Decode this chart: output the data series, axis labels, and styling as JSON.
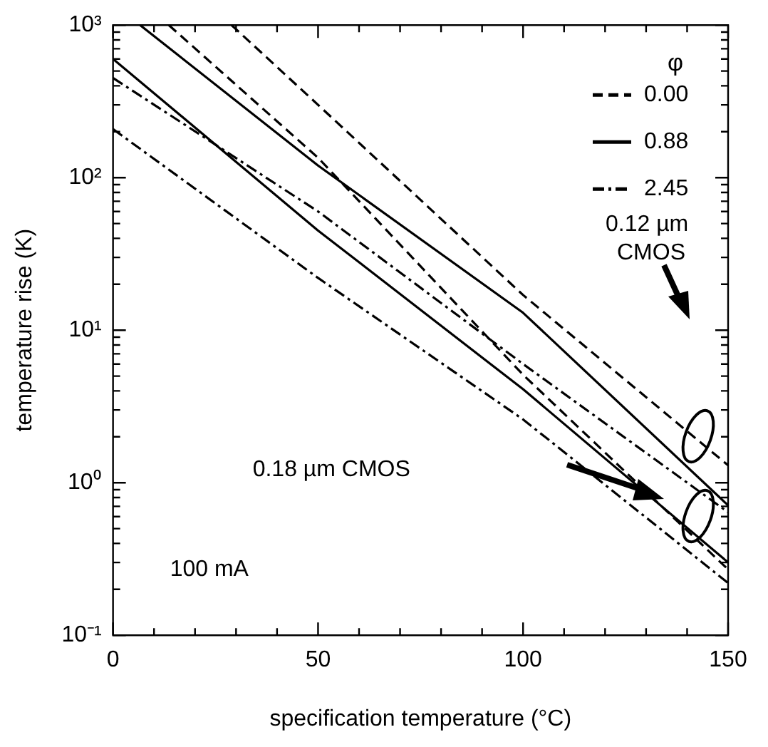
{
  "chart_data": {
    "type": "line",
    "xlabel": "specification temperature (°C)",
    "ylabel": "temperature rise (K)",
    "legend_title": "φ",
    "xlim": [
      0,
      150
    ],
    "ylim": [
      0.1,
      1000
    ],
    "log": "y",
    "xticks": [
      0,
      {
        "value": 10,
        "label": null
      },
      {
        "value": 20,
        "label": null
      },
      {
        "value": 30,
        "label": null
      },
      {
        "value": 40,
        "label": null
      },
      50,
      {
        "value": 60,
        "label": null
      },
      {
        "value": 70,
        "label": null
      },
      {
        "value": 80,
        "label": null
      },
      {
        "value": 90,
        "label": null
      },
      100,
      {
        "value": 110,
        "label": null
      },
      {
        "value": 120,
        "label": null
      },
      {
        "value": 130,
        "label": null
      },
      {
        "value": 140,
        "label": null
      },
      150
    ],
    "yticks": [
      {
        "value": 0.1,
        "label": "10⁻¹"
      },
      {
        "value": 0.2,
        "label": null
      },
      {
        "value": 0.3,
        "label": null
      },
      {
        "value": 0.4,
        "label": null
      },
      {
        "value": 0.5,
        "label": null
      },
      {
        "value": 0.6,
        "label": null
      },
      {
        "value": 0.7,
        "label": null
      },
      {
        "value": 0.8,
        "label": null
      },
      {
        "value": 0.9,
        "label": null
      },
      {
        "value": 1,
        "label": "10⁰"
      },
      {
        "value": 2,
        "label": null
      },
      {
        "value": 3,
        "label": null
      },
      {
        "value": 4,
        "label": null
      },
      {
        "value": 5,
        "label": null
      },
      {
        "value": 6,
        "label": null
      },
      {
        "value": 7,
        "label": null
      },
      {
        "value": 8,
        "label": null
      },
      {
        "value": 9,
        "label": null
      },
      {
        "value": 10,
        "label": "10¹"
      },
      {
        "value": 20,
        "label": null
      },
      {
        "value": 30,
        "label": null
      },
      {
        "value": 40,
        "label": null
      },
      {
        "value": 50,
        "label": null
      },
      {
        "value": 60,
        "label": null
      },
      {
        "value": 70,
        "label": null
      },
      {
        "value": 80,
        "label": null
      },
      {
        "value": 90,
        "label": null
      },
      {
        "value": 100,
        "label": "10²"
      },
      {
        "value": 200,
        "label": null
      },
      {
        "value": 300,
        "label": null
      },
      {
        "value": 400,
        "label": null
      },
      {
        "value": 500,
        "label": null
      },
      {
        "value": 600,
        "label": null
      },
      {
        "value": 700,
        "label": null
      },
      {
        "value": 800,
        "label": null
      },
      {
        "value": 900,
        "label": null
      },
      {
        "value": 1000,
        "label": "10³"
      }
    ],
    "legend": "top right",
    "grid": false,
    "marker": "none",
    "annotations": [
      "0.12 µm CMOS",
      "0.18 µm CMOS",
      "100 mA"
    ],
    "series": [
      {
        "name": "0.00",
        "color": "#000000",
        "line_style": "dashed",
        "x": [
          28.9,
          50,
          100,
          150
        ],
        "values": [
          1000,
          300,
          17,
          1.3
        ]
      },
      {
        "name": "0.88",
        "color": "#000000",
        "line_style": "solid",
        "x": [
          6.6,
          50,
          100,
          150
        ],
        "values": [
          1000,
          120,
          13,
          0.71
        ]
      },
      {
        "name": "2.45",
        "color": "#000000",
        "line_style": "dashdot",
        "x": [
          0,
          50,
          100,
          150
        ],
        "values": [
          450,
          60,
          6,
          0.64
        ]
      },
      {
        "color": "#000000",
        "line_style": "dashed",
        "x": [
          13.6,
          50,
          100,
          150
        ],
        "values": [
          1000,
          135,
          5.1,
          0.27
        ]
      },
      {
        "color": "#000000",
        "line_style": "solid",
        "x": [
          0,
          50,
          100,
          150
        ],
        "values": [
          600,
          45,
          4.1,
          0.3
        ]
      },
      {
        "color": "#000000",
        "line_style": "dashdot",
        "x": [
          0,
          50,
          100,
          150
        ],
        "values": [
          208,
          22,
          2.6,
          0.22
        ]
      }
    ]
  }
}
